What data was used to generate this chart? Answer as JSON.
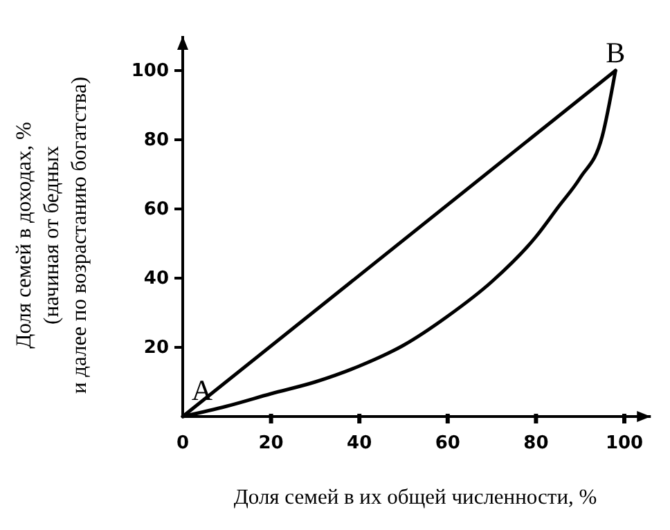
{
  "chart_data": {
    "type": "line",
    "xlabel": "Доля семей в их общей численности, %",
    "ylabel": "Доля семей в доходах, %\n(начиная от бедных\nи далее по возрастанию богатства)",
    "xlim": [
      0,
      106
    ],
    "ylim": [
      0,
      110
    ],
    "xticks": [
      0,
      20,
      40,
      60,
      80,
      100
    ],
    "yticks": [
      {
        "value": 0,
        "label": null
      },
      20,
      40,
      60,
      80,
      100
    ],
    "series": [
      {
        "color": "#000000",
        "x": [
          0,
          98
        ],
        "values": [
          0,
          100
        ]
      },
      {
        "color": "#000000",
        "x": [
          0,
          10,
          20,
          30,
          40,
          50,
          60,
          70,
          80,
          85,
          90,
          95,
          98
        ],
        "values": [
          0,
          3,
          6.6,
          10,
          14.6,
          20.6,
          29,
          39,
          52,
          60.5,
          69,
          81,
          100
        ]
      }
    ],
    "annotations": [
      {
        "text": "A",
        "x": 0,
        "y": 0
      },
      {
        "text": "B",
        "x": 98,
        "y": 100
      }
    ],
    "marker": "none",
    "line_style": "solid"
  }
}
